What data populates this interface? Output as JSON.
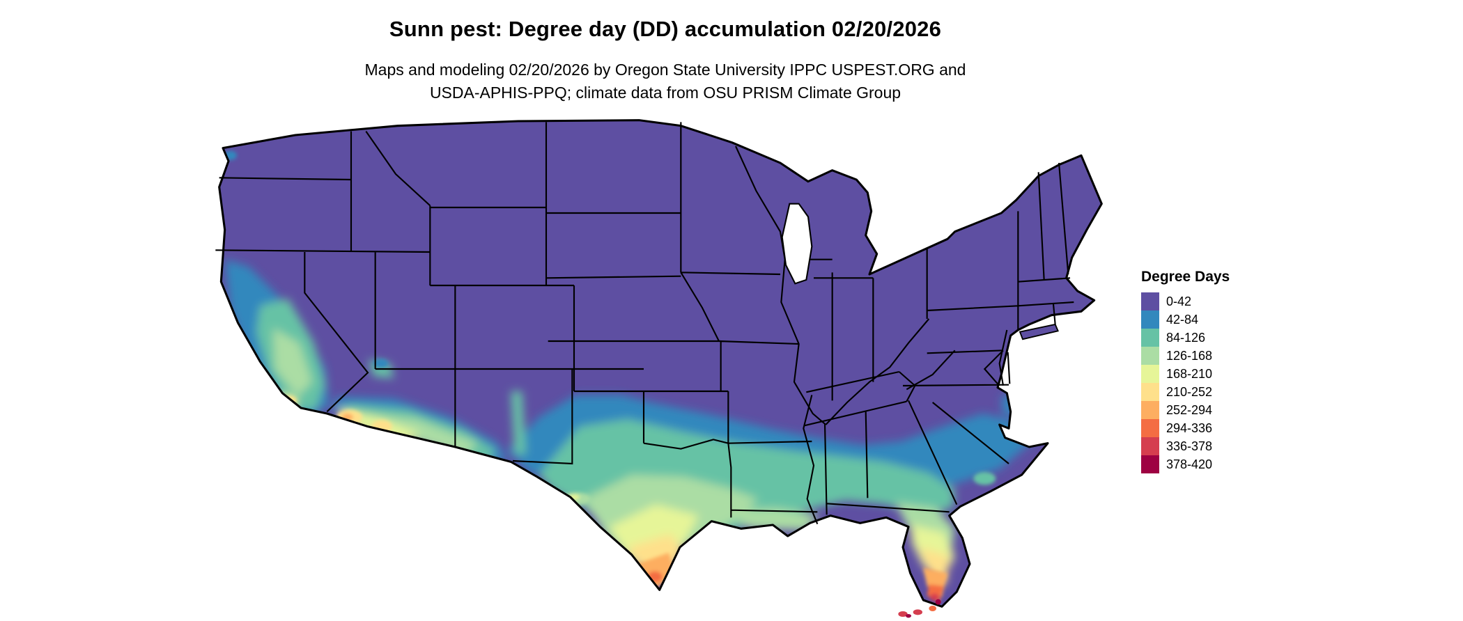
{
  "header": {
    "title": "Sunn pest: Degree day (DD) accumulation 02/20/2026",
    "subtitle_line1": "Maps and modeling 02/20/2026 by Oregon State University IPPC USPEST.ORG and",
    "subtitle_line2": "USDA-APHIS-PPQ; climate data from OSU PRISM Climate Group"
  },
  "legend": {
    "title": "Degree Days",
    "items": [
      {
        "range": "0-42",
        "color": "#5e4fa2"
      },
      {
        "range": "42-84",
        "color": "#3288bd"
      },
      {
        "range": "84-126",
        "color": "#66c2a5"
      },
      {
        "range": "126-168",
        "color": "#abdda4"
      },
      {
        "range": "168-210",
        "color": "#e6f598"
      },
      {
        "range": "210-252",
        "color": "#fee08b"
      },
      {
        "range": "252-294",
        "color": "#fdae61"
      },
      {
        "range": "294-336",
        "color": "#f46d43"
      },
      {
        "range": "336-378",
        "color": "#d53e4f"
      },
      {
        "range": "378-420",
        "color": "#9e0142"
      }
    ]
  },
  "map": {
    "type": "choropleth",
    "area": "Continental United States with state borders",
    "background": "#ffffff",
    "water_color": "#ffffff",
    "border_color": "#000000",
    "regions": [
      {
        "area": "Northern, central and eastern interior US",
        "range": "0-42"
      },
      {
        "area": "Band from west Texas across the Deep South to coastal Carolinas; coastal California",
        "range": "42-84"
      },
      {
        "area": "Central Texas, Gulf Coast, southern Arizona, California Central Valley, north Florida",
        "range": "84-126"
      },
      {
        "area": "South-central Texas, Louisiana coast, central Florida",
        "range": "126-210"
      },
      {
        "area": "South Texas, Phoenix-Yuma Arizona, southern California lowlands, south-central Florida",
        "range": "210-336"
      },
      {
        "area": "Far south Texas tip, Miami area and Florida Keys",
        "range": "336-420"
      }
    ]
  }
}
